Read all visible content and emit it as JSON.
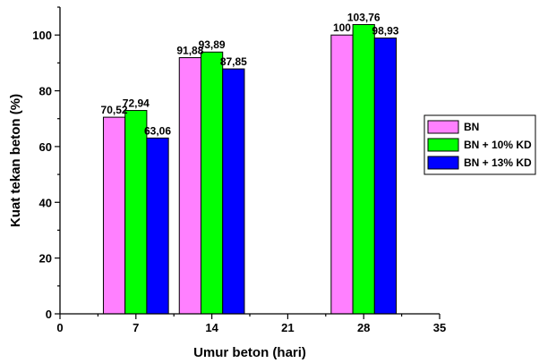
{
  "chart_data": {
    "type": "bar",
    "xlabel": "Umur beton (hari)",
    "ylabel": "Kuat tekan beton (%)",
    "xlim": [
      0,
      35
    ],
    "ylim": [
      0,
      110
    ],
    "xticks": [
      0,
      7,
      14,
      21,
      28,
      35
    ],
    "xtick_labels": [
      "0",
      "7",
      "14",
      "21",
      "28",
      "35"
    ],
    "yticks": [
      0,
      20,
      40,
      60,
      80,
      100
    ],
    "ytick_labels": [
      "0",
      "20",
      "40",
      "60",
      "80",
      "100"
    ],
    "categories": [
      7,
      14,
      28
    ],
    "bar_width_days": 2,
    "series": [
      {
        "name": "BN",
        "color": "#ff80ff",
        "values": [
          70.52,
          91.88,
          100
        ],
        "labels": [
          "70,52",
          "91,88",
          "100"
        ]
      },
      {
        "name": "BN + 10% KD",
        "color": "#00ff00",
        "values": [
          72.94,
          93.89,
          103.76
        ],
        "labels": [
          "72,94",
          "93,89",
          "103,76"
        ]
      },
      {
        "name": "BN + 13% KD",
        "color": "#0000ff",
        "values": [
          63.06,
          87.85,
          98.93
        ],
        "labels": [
          "63,06",
          "87,85",
          "98,93"
        ]
      }
    ],
    "grid": false,
    "legend_position": "right"
  }
}
